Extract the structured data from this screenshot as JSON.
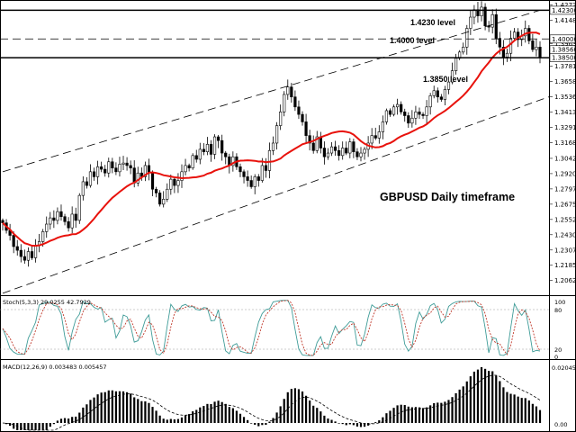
{
  "chart_data": {
    "type": "candlestick",
    "title": "GBPUSD Daily timeframe",
    "symbol": "GBPUSD",
    "timeframe": "Daily",
    "y_range": [
      1.1945,
      1.4298
    ],
    "y_ticks": [
      "1.42720",
      "1.41485",
      "1.40000",
      "1.39635",
      "1.37810",
      "1.36585",
      "1.35360",
      "1.34135",
      "1.32910",
      "1.31685",
      "1.30425",
      "1.29200",
      "1.27975",
      "1.26750",
      "1.25525",
      "1.24300",
      "1.23075",
      "1.21850",
      "1.20625"
    ],
    "price_labels": [
      "1.42300",
      "1.40000",
      "1.38500",
      "1.38560"
    ],
    "levels": [
      {
        "label": "1.4230 level",
        "value": 1.423,
        "style": "solid"
      },
      {
        "label": "1.4000 level",
        "value": 1.4,
        "style": "dashed"
      },
      {
        "label": "1.3850 level",
        "value": 1.385,
        "style": "solid"
      }
    ],
    "channel": {
      "upper": [
        [
          0,
          1.2935
        ],
        [
          147,
          1.423
        ]
      ],
      "lower": [
        [
          0,
          1.196
        ],
        [
          147,
          1.351
        ]
      ]
    },
    "closes": [
      1.2525,
      1.2465,
      1.2425,
      1.2335,
      1.2305,
      1.2255,
      1.2225,
      1.2295,
      1.2245,
      1.2345,
      1.2375,
      1.2455,
      1.2515,
      1.2565,
      1.2545,
      1.2615,
      1.2575,
      1.2535,
      1.2485,
      1.2595,
      1.2545,
      1.2745,
      1.2855,
      1.2825,
      1.2935,
      1.2895,
      1.2975,
      1.2955,
      1.2925,
      1.3015,
      1.2965,
      1.2935,
      1.2995,
      1.3005,
      1.2985,
      1.2965,
      1.2845,
      1.2925,
      1.2895,
      1.2985,
      1.2925,
      1.2795,
      1.2765,
      1.2675,
      1.2715,
      1.2795,
      1.2875,
      1.2825,
      1.2865,
      1.2935,
      1.2985,
      1.2965,
      1.3065,
      1.3035,
      1.3115,
      1.3095,
      1.3155,
      1.3075,
      1.3215,
      1.3185,
      1.3085,
      1.3055,
      1.2985,
      1.3055,
      1.2975,
      1.2935,
      1.2895,
      1.2865,
      1.2815,
      1.2895,
      1.2865,
      1.2985,
      1.2945,
      1.3105,
      1.3165,
      1.3305,
      1.3415,
      1.3555,
      1.3615,
      1.3535,
      1.3455,
      1.3395,
      1.3335,
      1.3225,
      1.3165,
      1.3105,
      1.3215,
      1.3125,
      1.3055,
      1.3085,
      1.3135,
      1.3105,
      1.3065,
      1.3125,
      1.3085,
      1.3175,
      1.3095,
      1.3055,
      1.3085,
      1.3115,
      1.3165,
      1.3225,
      1.3205,
      1.3255,
      1.3335,
      1.3425,
      1.3395,
      1.3455,
      1.3475,
      1.3415,
      1.3385,
      1.3325,
      1.3365,
      1.3415,
      1.3395,
      1.3385,
      1.3455,
      1.3545,
      1.3585,
      1.3535,
      1.3515,
      1.3595,
      1.3655,
      1.3745,
      1.3845,
      1.3895,
      1.3935,
      1.4085,
      1.4175,
      1.4235,
      1.4185,
      1.4255,
      1.4105,
      1.4095,
      1.4195,
      1.4005,
      1.3935,
      1.3855,
      1.3885,
      1.4005,
      1.4055,
      1.3995,
      1.4025,
      1.4085,
      1.3985,
      1.3915,
      1.3935,
      1.3856
    ],
    "ma_period": 20,
    "ma_color": "#e8120c",
    "stochastic": {
      "label": "Stoch(5,3,3) 29.0255 42.7929",
      "levels": [
        "100",
        "80",
        "20",
        "0"
      ]
    },
    "macd": {
      "label": "MACD(12,26,9) 0.003483 0.005457",
      "ticks": [
        "0.020458",
        "0.00"
      ]
    }
  },
  "colors": {
    "ma": "#e8120c",
    "stoch_main": "#3f9c98",
    "stoch_signal": "#c0392b",
    "grid": "#000000",
    "background": "#ffffff"
  }
}
